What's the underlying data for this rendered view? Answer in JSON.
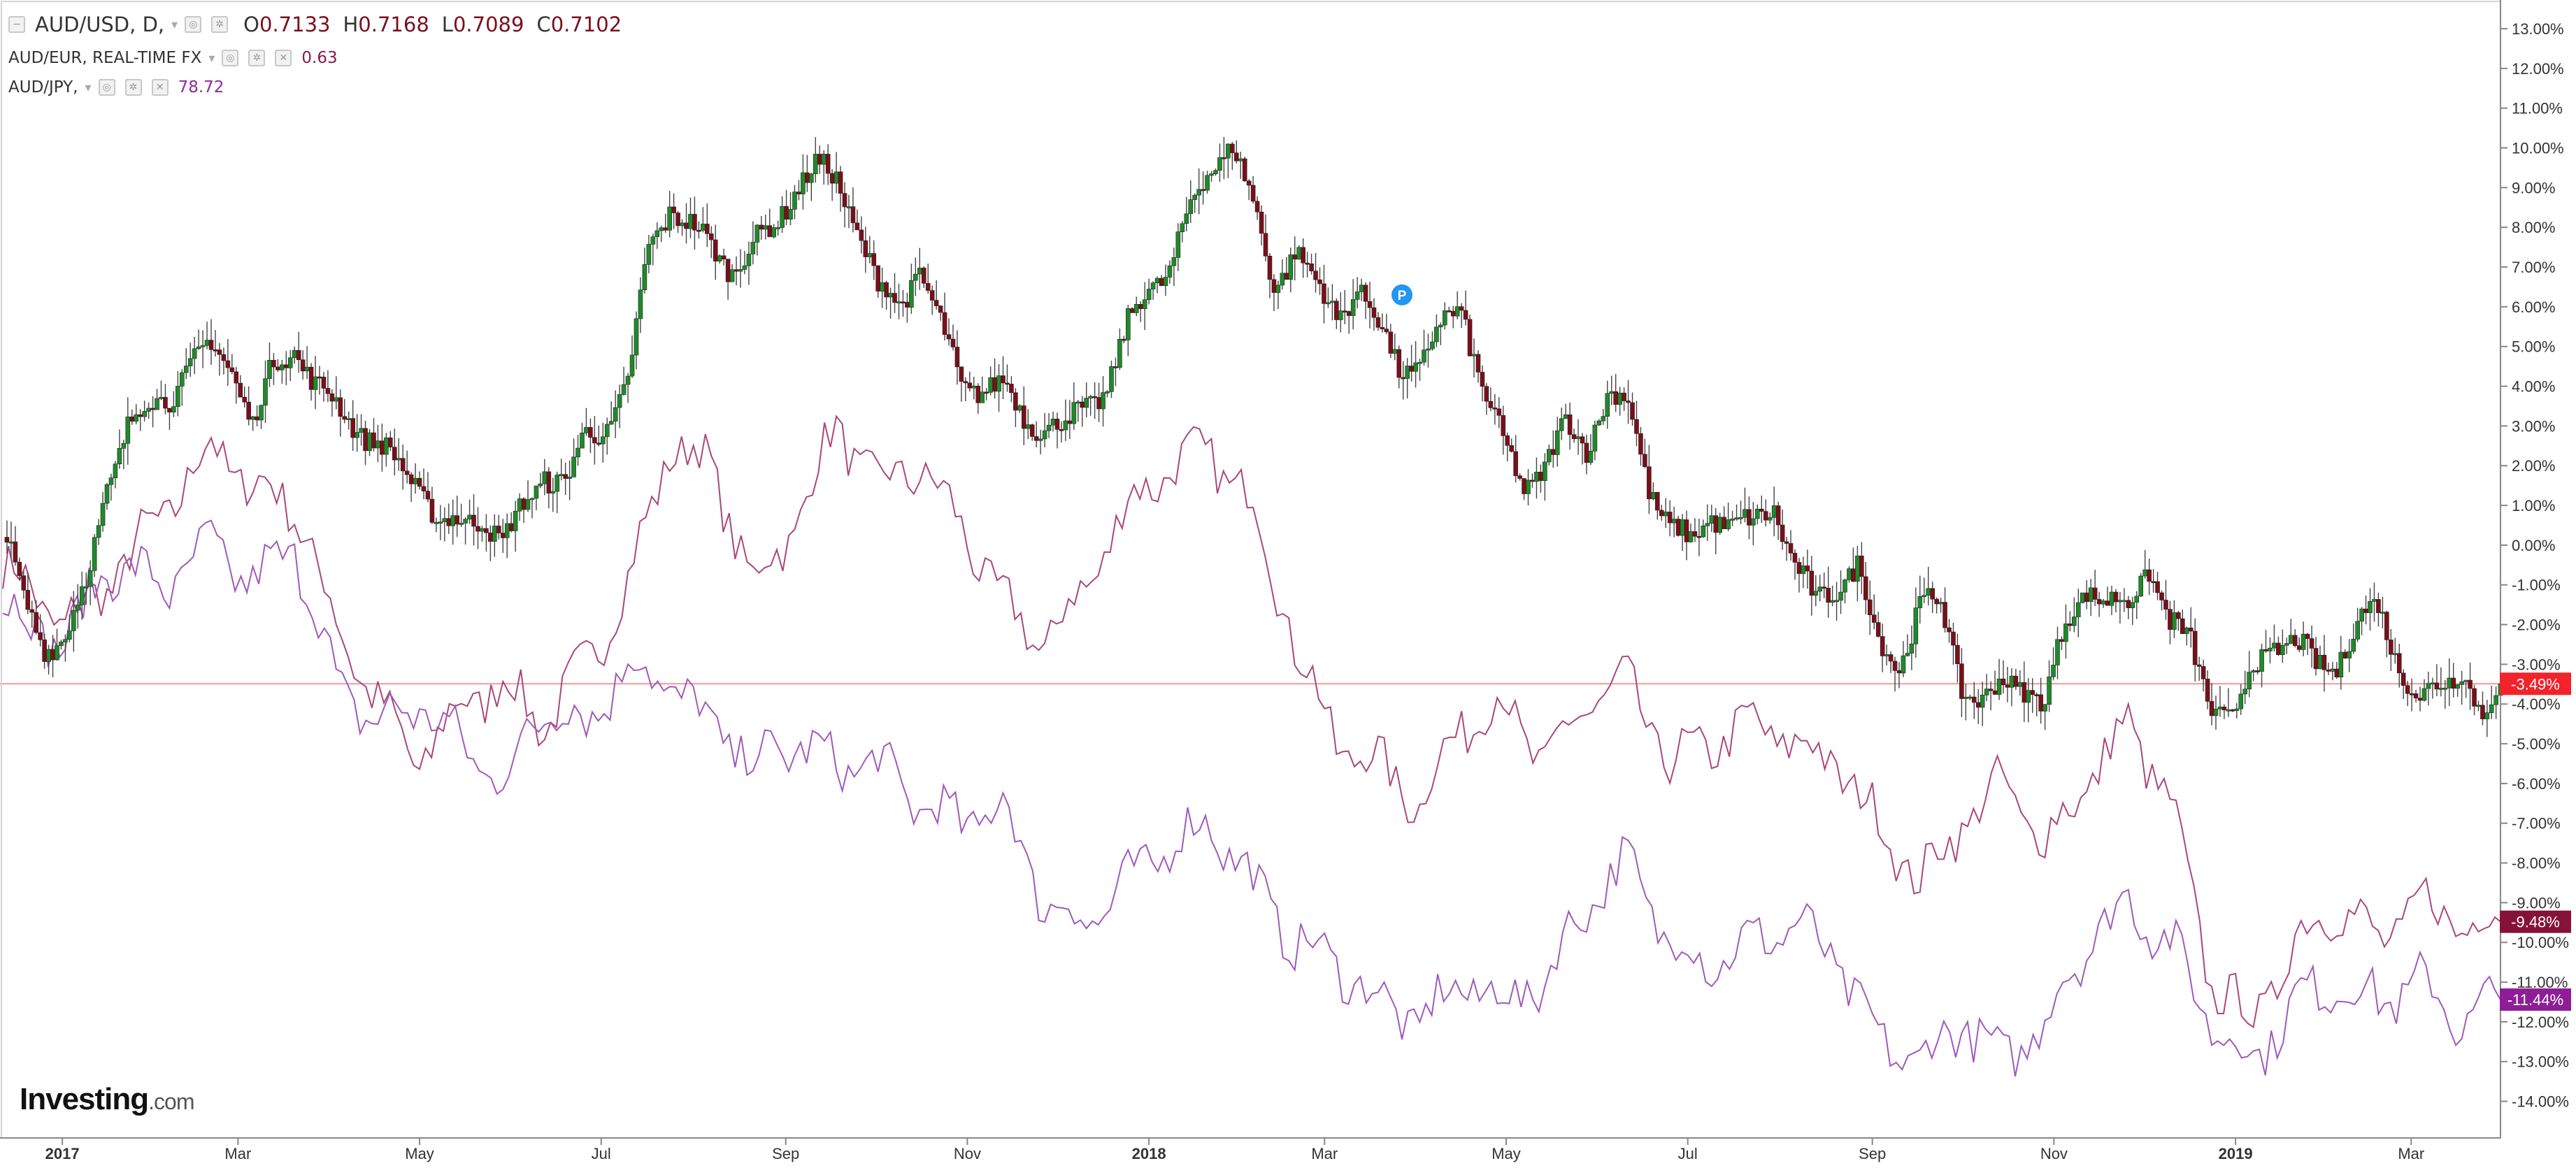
{
  "legend": {
    "main": {
      "symbol": "AUD/USD, D,",
      "open_label": "O",
      "open": "0.7133",
      "high_label": "H",
      "high": "0.7168",
      "low_label": "L",
      "low": "0.7089",
      "close_label": "C",
      "close": "0.7102"
    },
    "aud_eur": {
      "symbol": "AUD/EUR, REAL-TIME FX",
      "value": "0.63",
      "color": "#8b1a4a"
    },
    "aud_jpy": {
      "symbol": "AUD/JPY,",
      "value": "78.72",
      "color": "#8e2a9a"
    }
  },
  "logo": {
    "name": "Investing",
    "suffix": ".com"
  },
  "colors": {
    "up": "#1f8a2a",
    "down": "#7a0f1a",
    "eur_line": "#a8487a",
    "jpy_line": "#a05ab8",
    "hline": "#f29a9a",
    "badge_usd": "#f2232a",
    "badge_eur": "#86123a",
    "badge_jpy": "#8e1e96",
    "marker": "#2196f3"
  },
  "chart_data": {
    "type": "line",
    "title": "AUD/USD, D,",
    "y_unit": "%",
    "ylim": [
      -14.5,
      13.3
    ],
    "y_ticks": [
      "13.00%",
      "12.00%",
      "11.00%",
      "10.00%",
      "9.00%",
      "8.00%",
      "7.00%",
      "6.00%",
      "5.00%",
      "4.00%",
      "3.00%",
      "2.00%",
      "1.00%",
      "0.00%",
      "-1.00%",
      "-2.00%",
      "-3.00%",
      "-4.00%",
      "-5.00%",
      "-6.00%",
      "-7.00%",
      "-8.00%",
      "-9.00%",
      "-10.00%",
      "-11.00%",
      "-12.00%",
      "-13.00%",
      "-14.00%"
    ],
    "y_tick_values": [
      13,
      12,
      11,
      10,
      9,
      8,
      7,
      6,
      5,
      4,
      3,
      2,
      1,
      0,
      -1,
      -2,
      -3,
      -4,
      -5,
      -6,
      -7,
      -8,
      -9,
      -10,
      -11,
      -12,
      -13,
      -14
    ],
    "x_ticks": [
      {
        "label": "2017",
        "date": "2017-01-01",
        "bold": true
      },
      {
        "label": "Mar",
        "date": "2017-03-01"
      },
      {
        "label": "May",
        "date": "2017-05-01"
      },
      {
        "label": "Jul",
        "date": "2017-07-01"
      },
      {
        "label": "Sep",
        "date": "2017-09-01"
      },
      {
        "label": "Nov",
        "date": "2017-11-01"
      },
      {
        "label": "2018",
        "date": "2018-01-01",
        "bold": true
      },
      {
        "label": "Mar",
        "date": "2018-03-01"
      },
      {
        "label": "May",
        "date": "2018-05-01"
      },
      {
        "label": "Jul",
        "date": "2018-07-01"
      },
      {
        "label": "Sep",
        "date": "2018-09-01"
      },
      {
        "label": "Nov",
        "date": "2018-11-01"
      },
      {
        "label": "2019",
        "date": "2019-01-01",
        "bold": true
      },
      {
        "label": "Mar",
        "date": "2019-03-01"
      }
    ],
    "xlim": [
      "2016-12-12",
      "2019-03-31"
    ],
    "series": [
      {
        "name": "AUD/USD",
        "style": "candlestick",
        "current_label": "-3.49%",
        "current_value": -3.49,
        "points": [
          [
            "2016-12-12",
            0.5
          ],
          [
            "2016-12-19",
            -1.5
          ],
          [
            "2016-12-26",
            -2.5
          ],
          [
            "2017-01-02",
            -2.3
          ],
          [
            "2017-01-09",
            -1.0
          ],
          [
            "2017-01-16",
            1.5
          ],
          [
            "2017-01-23",
            3.0
          ],
          [
            "2017-01-30",
            3.5
          ],
          [
            "2017-02-06",
            3.8
          ],
          [
            "2017-02-13",
            4.5
          ],
          [
            "2017-02-20",
            5.0
          ],
          [
            "2017-02-27",
            4.5
          ],
          [
            "2017-03-06",
            3.0
          ],
          [
            "2017-03-13",
            4.5
          ],
          [
            "2017-03-20",
            5.0
          ],
          [
            "2017-03-27",
            4.0
          ],
          [
            "2017-04-03",
            3.5
          ],
          [
            "2017-04-10",
            3.0
          ],
          [
            "2017-04-17",
            2.5
          ],
          [
            "2017-04-24",
            2.0
          ],
          [
            "2017-05-01",
            1.5
          ],
          [
            "2017-05-08",
            0.5
          ],
          [
            "2017-05-15",
            0.5
          ],
          [
            "2017-05-22",
            0.8
          ],
          [
            "2017-05-29",
            0.0
          ],
          [
            "2017-06-05",
            1.0
          ],
          [
            "2017-06-12",
            1.8
          ],
          [
            "2017-06-19",
            1.5
          ],
          [
            "2017-06-26",
            2.8
          ],
          [
            "2017-07-03",
            3.0
          ],
          [
            "2017-07-10",
            4.0
          ],
          [
            "2017-07-17",
            7.5
          ],
          [
            "2017-07-24",
            8.5
          ],
          [
            "2017-07-31",
            8.0
          ],
          [
            "2017-08-07",
            7.5
          ],
          [
            "2017-08-14",
            7.0
          ],
          [
            "2017-08-21",
            7.5
          ],
          [
            "2017-08-28",
            8.0
          ],
          [
            "2017-09-04",
            9.0
          ],
          [
            "2017-09-11",
            9.5
          ],
          [
            "2017-09-18",
            9.2
          ],
          [
            "2017-09-25",
            8.0
          ],
          [
            "2017-10-02",
            6.5
          ],
          [
            "2017-10-09",
            6.0
          ],
          [
            "2017-10-16",
            7.0
          ],
          [
            "2017-10-23",
            5.5
          ],
          [
            "2017-10-30",
            4.0
          ],
          [
            "2017-11-06",
            4.0
          ],
          [
            "2017-11-13",
            4.0
          ],
          [
            "2017-11-20",
            3.2
          ],
          [
            "2017-11-27",
            3.0
          ],
          [
            "2017-12-04",
            3.0
          ],
          [
            "2017-12-11",
            3.5
          ],
          [
            "2017-12-18",
            4.0
          ],
          [
            "2017-12-25",
            5.5
          ],
          [
            "2018-01-01",
            6.5
          ],
          [
            "2018-01-08",
            7.0
          ],
          [
            "2018-01-15",
            8.5
          ],
          [
            "2018-01-22",
            9.5
          ],
          [
            "2018-01-29",
            10.2
          ],
          [
            "2018-02-05",
            8.5
          ],
          [
            "2018-02-12",
            6.5
          ],
          [
            "2018-02-19",
            7.5
          ],
          [
            "2018-02-26",
            6.5
          ],
          [
            "2018-03-05",
            5.8
          ],
          [
            "2018-03-12",
            6.5
          ],
          [
            "2018-03-19",
            5.5
          ],
          [
            "2018-03-26",
            4.5
          ],
          [
            "2018-04-02",
            4.5
          ],
          [
            "2018-04-09",
            5.5
          ],
          [
            "2018-04-16",
            6.0
          ],
          [
            "2018-04-23",
            4.0
          ],
          [
            "2018-04-30",
            2.5
          ],
          [
            "2018-05-07",
            1.5
          ],
          [
            "2018-05-14",
            2.0
          ],
          [
            "2018-05-21",
            3.0
          ],
          [
            "2018-05-28",
            2.5
          ],
          [
            "2018-06-04",
            3.8
          ],
          [
            "2018-06-11",
            3.5
          ],
          [
            "2018-06-18",
            1.5
          ],
          [
            "2018-06-25",
            0.5
          ],
          [
            "2018-07-02",
            0.0
          ],
          [
            "2018-07-09",
            0.8
          ],
          [
            "2018-07-16",
            0.5
          ],
          [
            "2018-07-23",
            0.5
          ],
          [
            "2018-07-30",
            1.0
          ],
          [
            "2018-08-06",
            -0.5
          ],
          [
            "2018-08-13",
            -1.5
          ],
          [
            "2018-08-20",
            -1.0
          ],
          [
            "2018-08-27",
            -0.5
          ],
          [
            "2018-09-03",
            -2.5
          ],
          [
            "2018-09-10",
            -3.0
          ],
          [
            "2018-09-17",
            -1.5
          ],
          [
            "2018-09-24",
            -1.5
          ],
          [
            "2018-10-01",
            -3.5
          ],
          [
            "2018-10-08",
            -4.0
          ],
          [
            "2018-10-15",
            -3.5
          ],
          [
            "2018-10-22",
            -3.5
          ],
          [
            "2018-10-29",
            -4.0
          ],
          [
            "2018-11-05",
            -2.0
          ],
          [
            "2018-11-12",
            -1.0
          ],
          [
            "2018-11-19",
            -1.5
          ],
          [
            "2018-11-26",
            -1.5
          ],
          [
            "2018-12-03",
            -0.5
          ],
          [
            "2018-12-10",
            -2.0
          ],
          [
            "2018-12-17",
            -2.5
          ],
          [
            "2018-12-24",
            -4.0
          ],
          [
            "2018-12-31",
            -4.5
          ],
          [
            "2019-01-07",
            -3.0
          ],
          [
            "2019-01-14",
            -2.5
          ],
          [
            "2019-01-21",
            -2.5
          ],
          [
            "2019-01-28",
            -3.0
          ],
          [
            "2019-02-04",
            -3.0
          ],
          [
            "2019-02-11",
            -2.0
          ],
          [
            "2019-02-18",
            -1.5
          ],
          [
            "2019-02-25",
            -3.0
          ],
          [
            "2019-03-04",
            -4.0
          ],
          [
            "2019-03-11",
            -3.5
          ],
          [
            "2019-03-18",
            -3.0
          ],
          [
            "2019-03-25",
            -4.5
          ],
          [
            "2019-03-31",
            -3.49
          ]
        ]
      },
      {
        "name": "AUD/EUR, REAL-TIME FX",
        "style": "line",
        "current_label": "-9.48%",
        "current_value": -9.48,
        "points": [
          [
            "2016-12-12",
            -0.5
          ],
          [
            "2017-01-02",
            -2.0
          ],
          [
            "2017-01-16",
            -1.0
          ],
          [
            "2017-02-06",
            1.0
          ],
          [
            "2017-02-20",
            2.5
          ],
          [
            "2017-03-06",
            1.5
          ],
          [
            "2017-03-20",
            1.0
          ],
          [
            "2017-04-03",
            -2.0
          ],
          [
            "2017-04-17",
            -4.0
          ],
          [
            "2017-05-01",
            -5.5
          ],
          [
            "2017-05-15",
            -4.0
          ],
          [
            "2017-05-29",
            -3.5
          ],
          [
            "2017-06-12",
            -4.5
          ],
          [
            "2017-06-26",
            -3.0
          ],
          [
            "2017-07-10",
            -1.0
          ],
          [
            "2017-07-24",
            2.5
          ],
          [
            "2017-08-07",
            2.0
          ],
          [
            "2017-08-21",
            -1.0
          ],
          [
            "2017-09-04",
            0.5
          ],
          [
            "2017-09-18",
            3.0
          ],
          [
            "2017-10-02",
            1.5
          ],
          [
            "2017-10-16",
            2.0
          ],
          [
            "2017-10-30",
            0.5
          ],
          [
            "2017-11-13",
            -1.5
          ],
          [
            "2017-11-27",
            -2.5
          ],
          [
            "2017-12-11",
            -1.0
          ],
          [
            "2017-12-25",
            1.0
          ],
          [
            "2018-01-08",
            2.0
          ],
          [
            "2018-01-22",
            2.3
          ],
          [
            "2018-02-05",
            1.0
          ],
          [
            "2018-02-19",
            -2.5
          ],
          [
            "2018-03-05",
            -5.0
          ],
          [
            "2018-03-19",
            -5.5
          ],
          [
            "2018-04-02",
            -6.5
          ],
          [
            "2018-04-16",
            -4.5
          ],
          [
            "2018-04-30",
            -4.0
          ],
          [
            "2018-05-14",
            -5.5
          ],
          [
            "2018-05-28",
            -4.0
          ],
          [
            "2018-06-11",
            -3.5
          ],
          [
            "2018-06-25",
            -5.5
          ],
          [
            "2018-07-09",
            -5.0
          ],
          [
            "2018-07-23",
            -4.5
          ],
          [
            "2018-08-06",
            -5.0
          ],
          [
            "2018-08-20",
            -5.5
          ],
          [
            "2018-09-03",
            -7.0
          ],
          [
            "2018-09-17",
            -8.5
          ],
          [
            "2018-10-01",
            -7.0
          ],
          [
            "2018-10-15",
            -6.0
          ],
          [
            "2018-10-29",
            -7.5
          ],
          [
            "2018-11-12",
            -6.0
          ],
          [
            "2018-11-26",
            -4.5
          ],
          [
            "2018-12-10",
            -6.5
          ],
          [
            "2018-12-24",
            -11.0
          ],
          [
            "2019-01-07",
            -12.0
          ],
          [
            "2019-01-21",
            -10.0
          ],
          [
            "2019-02-04",
            -9.0
          ],
          [
            "2019-02-18",
            -10.0
          ],
          [
            "2019-03-04",
            -9.0
          ],
          [
            "2019-03-18",
            -9.5
          ],
          [
            "2019-03-31",
            -9.48
          ]
        ]
      },
      {
        "name": "AUD/JPY,",
        "style": "line",
        "current_label": "-11.44%",
        "current_value": -11.44,
        "points": [
          [
            "2016-12-12",
            -1.5
          ],
          [
            "2017-01-02",
            -2.5
          ],
          [
            "2017-01-16",
            -0.5
          ],
          [
            "2017-02-06",
            -1.0
          ],
          [
            "2017-02-20",
            0.0
          ],
          [
            "2017-03-06",
            -1.0
          ],
          [
            "2017-03-20",
            0.0
          ],
          [
            "2017-04-03",
            -3.5
          ],
          [
            "2017-04-17",
            -4.5
          ],
          [
            "2017-05-01",
            -4.0
          ],
          [
            "2017-05-15",
            -5.0
          ],
          [
            "2017-05-29",
            -6.0
          ],
          [
            "2017-06-12",
            -4.0
          ],
          [
            "2017-06-26",
            -4.5
          ],
          [
            "2017-07-10",
            -3.0
          ],
          [
            "2017-07-24",
            -3.5
          ],
          [
            "2017-08-07",
            -4.5
          ],
          [
            "2017-08-21",
            -5.5
          ],
          [
            "2017-09-04",
            -5.0
          ],
          [
            "2017-09-18",
            -5.5
          ],
          [
            "2017-10-02",
            -5.5
          ],
          [
            "2017-10-16",
            -6.5
          ],
          [
            "2017-10-30",
            -7.0
          ],
          [
            "2017-11-13",
            -6.5
          ],
          [
            "2017-11-27",
            -9.0
          ],
          [
            "2017-12-11",
            -9.5
          ],
          [
            "2017-12-25",
            -8.5
          ],
          [
            "2018-01-08",
            -7.5
          ],
          [
            "2018-01-22",
            -7.0
          ],
          [
            "2018-02-05",
            -8.5
          ],
          [
            "2018-02-19",
            -10.0
          ],
          [
            "2018-03-05",
            -10.5
          ],
          [
            "2018-03-19",
            -11.5
          ],
          [
            "2018-04-02",
            -12.0
          ],
          [
            "2018-04-16",
            -11.0
          ],
          [
            "2018-04-30",
            -11.5
          ],
          [
            "2018-05-14",
            -11.0
          ],
          [
            "2018-05-28",
            -9.0
          ],
          [
            "2018-06-11",
            -8.0
          ],
          [
            "2018-06-25",
            -10.0
          ],
          [
            "2018-07-09",
            -10.5
          ],
          [
            "2018-07-23",
            -10.0
          ],
          [
            "2018-08-06",
            -9.5
          ],
          [
            "2018-08-20",
            -10.5
          ],
          [
            "2018-09-03",
            -12.5
          ],
          [
            "2018-09-17",
            -13.0
          ],
          [
            "2018-10-01",
            -12.0
          ],
          [
            "2018-10-15",
            -13.0
          ],
          [
            "2018-10-29",
            -12.0
          ],
          [
            "2018-11-12",
            -10.0
          ],
          [
            "2018-11-26",
            -9.0
          ],
          [
            "2018-12-10",
            -10.0
          ],
          [
            "2018-12-24",
            -12.0
          ],
          [
            "2019-01-07",
            -13.0
          ],
          [
            "2019-01-21",
            -11.5
          ],
          [
            "2019-02-04",
            -11.0
          ],
          [
            "2019-02-18",
            -11.5
          ],
          [
            "2019-03-04",
            -11.0
          ],
          [
            "2019-03-18",
            -12.0
          ],
          [
            "2019-03-31",
            -11.44
          ]
        ]
      }
    ],
    "hline": -3.49,
    "marker": {
      "label": "P",
      "date": "2018-03-27",
      "value": 6.3
    },
    "grid": false,
    "legend": "top-left"
  }
}
